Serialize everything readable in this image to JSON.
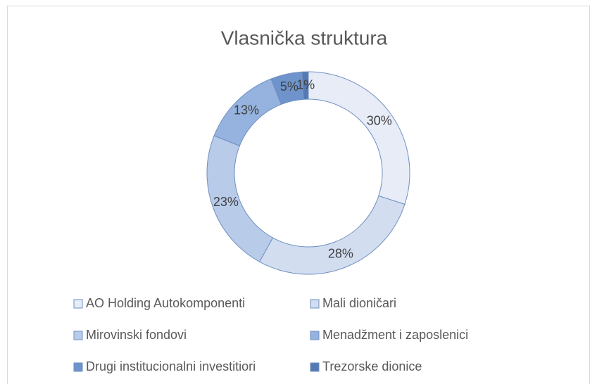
{
  "chart_data": {
    "type": "donut",
    "title": "Vlasnička struktura",
    "categories": [
      "AO Holding Autokomponenti",
      "Mali dioničari",
      "Mirovinski fondovi",
      "Menadžment i zaposlenici",
      "Drugi institucionalni investitiori",
      "Trezorske dionice"
    ],
    "values": [
      30,
      28,
      23,
      13,
      5,
      1
    ],
    "value_labels": [
      "30%",
      "28%",
      "23%",
      "13%",
      "5%",
      "1%"
    ],
    "colors": [
      "#e7ecf7",
      "#d2ddf0",
      "#b8cbe9",
      "#95b3de",
      "#6f94cc",
      "#5479b3"
    ],
    "legend": "bottom"
  }
}
